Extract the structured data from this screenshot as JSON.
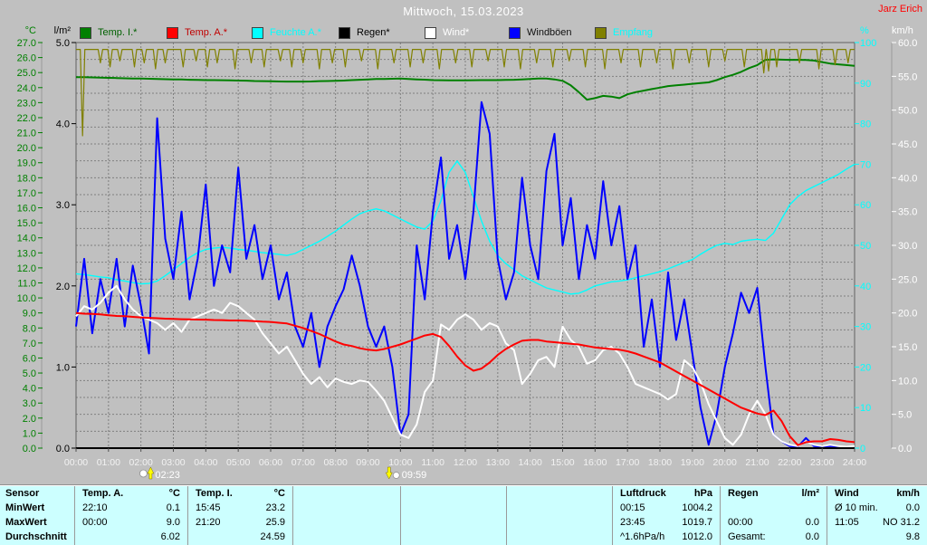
{
  "header": {
    "title": "Mittwoch, 15.03.2023",
    "station": "Jarz Erich"
  },
  "legend": [
    {
      "label": "Temp. I.*",
      "square": "#008000",
      "text": "#006000"
    },
    {
      "label": "Temp. A.*",
      "square": "#ff0000",
      "text": "#c00000"
    },
    {
      "label": "Feuchte A.*",
      "square": "#00ffff",
      "text": "#00ffff"
    },
    {
      "label": "Regen*",
      "square": "#000000",
      "text": "#000000"
    },
    {
      "label": "Wind*",
      "square": "#ffffff",
      "text": "#ffffff"
    },
    {
      "label": "Windböen",
      "square": "#0000ff",
      "text": "#101010"
    },
    {
      "label": "Empfang",
      "square": "#808000",
      "text": "#00ffff"
    }
  ],
  "axes": {
    "left_outer": {
      "unit": "°C",
      "color": "#008000",
      "min": 0,
      "max": 27,
      "step": 1,
      "decimals": 1
    },
    "left_inner": {
      "unit": "l/m²",
      "color": "#000000",
      "min": 0,
      "max": 5,
      "step": 1,
      "decimals": 1
    },
    "right_inner": {
      "unit": "%",
      "color": "#00ffff",
      "min": 0,
      "max": 100,
      "step": 10,
      "decimals": 0
    },
    "right_outer": {
      "unit": "km/h",
      "color": "#ffffff",
      "min": 0,
      "max": 60,
      "step": 5,
      "decimals": 1
    }
  },
  "x_axis": {
    "labels": [
      "00:00",
      "01:00",
      "02:00",
      "03:00",
      "04:00",
      "05:00",
      "06:00",
      "07:00",
      "08:00",
      "09:00",
      "10:00",
      "11:00",
      "12:00",
      "13:00",
      "14:00",
      "15:00",
      "16:00",
      "17:00",
      "18:00",
      "19:00",
      "20:00",
      "21:00",
      "22:00",
      "23:00",
      "24:00"
    ],
    "label_color": "#f2f2f2"
  },
  "markers": [
    {
      "time": "02:23",
      "hour": 2.3833,
      "direction": "up",
      "icon": "moon"
    },
    {
      "time": "09:59",
      "hour": 9.9833,
      "direction": "down",
      "icon": "moon"
    }
  ],
  "chart_data": {
    "type": "line",
    "x_unit": "hours",
    "x_range": [
      0,
      24
    ],
    "grid": {
      "vertical_every_hours": 1,
      "horizontal_every_kmh": 2.5,
      "color": "#808080"
    },
    "series": [
      {
        "name": "Feuchte A.*",
        "axis": "percent",
        "color": "#00ffff",
        "width": 1.4,
        "start": 0,
        "step": 0.25,
        "values": [
          43,
          42.8,
          42.5,
          42.2,
          42,
          41.5,
          41.2,
          40.8,
          40.5,
          40.6,
          41.2,
          42.5,
          44,
          45.5,
          47,
          48.2,
          49,
          49.3,
          49.5,
          49.3,
          49,
          48.8,
          48.5,
          48.2,
          48,
          47.8,
          47.5,
          48,
          49,
          50,
          51,
          52.2,
          53.5,
          55,
          56.5,
          57.8,
          58.5,
          59,
          58.5,
          57.5,
          56.5,
          55.5,
          54.5,
          54,
          56,
          61,
          68,
          70.8,
          68,
          62,
          56,
          51,
          47.5,
          45.5,
          44,
          42.5,
          41.5,
          40.5,
          39.5,
          39,
          38.5,
          38,
          38.2,
          39,
          40,
          40.5,
          41,
          41.2,
          41.5,
          42,
          42.5,
          43,
          43.5,
          44.2,
          45,
          45.8,
          46.5,
          47.8,
          49,
          50,
          50.5,
          50.2,
          51,
          51.3,
          51.5,
          51.2,
          53,
          56.5,
          60,
          62,
          63.5,
          64.5,
          65.5,
          66.5,
          67.5,
          68.8,
          70
        ]
      },
      {
        "name": "Windböen",
        "axis": "kmh",
        "color": "#0000ff",
        "width": 2,
        "start": 0,
        "step": 0.25,
        "values": [
          18,
          28,
          17,
          25,
          20,
          28,
          18,
          27,
          21,
          14,
          48.8,
          31,
          25,
          35,
          22,
          28,
          39,
          24,
          30,
          26,
          41.5,
          28,
          33,
          25,
          30,
          22,
          26,
          18,
          15,
          20,
          12,
          18,
          21,
          23.5,
          28.5,
          24,
          18,
          15,
          18,
          12,
          2,
          5,
          30,
          22,
          35,
          43,
          28,
          33,
          25,
          35,
          51.2,
          46.5,
          28,
          22,
          26,
          40,
          30,
          25,
          41,
          46.5,
          30,
          37,
          25,
          33,
          28,
          39.5,
          30,
          35.8,
          25,
          30,
          15,
          22,
          12,
          26,
          16,
          22,
          14,
          6,
          0.5,
          5,
          12,
          17,
          23,
          20,
          23.7,
          12,
          2,
          1,
          0.3,
          0.2,
          1.5,
          0.3,
          0.2,
          0.3,
          0.2,
          0.2,
          0.2
        ]
      },
      {
        "name": "Wind*",
        "axis": "kmh",
        "color": "#ffffff",
        "width": 2,
        "start": 0,
        "step": 0.25,
        "values": [
          19.5,
          21,
          20.5,
          21.5,
          23,
          24,
          22,
          20.5,
          19.5,
          19,
          18.5,
          17.5,
          18.5,
          17.2,
          19,
          19.5,
          20,
          20.5,
          20,
          21.5,
          21,
          20,
          19,
          17,
          15.5,
          14,
          15,
          13,
          11,
          9.5,
          10.5,
          9,
          10.3,
          9.8,
          9.5,
          10,
          9.8,
          8.5,
          7,
          4.5,
          2,
          1.5,
          3.5,
          8.3,
          10,
          18.3,
          17.5,
          19,
          19.8,
          19,
          17.5,
          18.5,
          18,
          15.5,
          14.5,
          9.5,
          11,
          13,
          13.5,
          12,
          18,
          16,
          15,
          12.5,
          13,
          14.5,
          15,
          14,
          12,
          9.5,
          9,
          8.5,
          8,
          7.2,
          8,
          13,
          12,
          9.8,
          6.5,
          4,
          1.5,
          0.5,
          2,
          5,
          7,
          5,
          2,
          1,
          0.5,
          0.3,
          1,
          0.5,
          0.3,
          0.5,
          0.3,
          0.2,
          0.3
        ]
      },
      {
        "name": "Temp. A.*",
        "axis": "temp_c",
        "color": "#ff0000",
        "width": 2,
        "start": 0,
        "step": 0.25,
        "values": [
          9.0,
          8.95,
          8.93,
          8.9,
          8.85,
          8.8,
          8.78,
          8.74,
          8.7,
          8.67,
          8.65,
          8.62,
          8.6,
          8.58,
          8.57,
          8.56,
          8.55,
          8.53,
          8.52,
          8.5,
          8.5,
          8.48,
          8.45,
          8.42,
          8.4,
          8.35,
          8.3,
          8.15,
          8.0,
          7.8,
          7.6,
          7.35,
          7.1,
          6.9,
          6.8,
          6.65,
          6.55,
          6.5,
          6.6,
          6.75,
          6.9,
          7.1,
          7.3,
          7.5,
          7.6,
          7.4,
          6.8,
          6.1,
          5.5,
          5.15,
          5.3,
          5.7,
          6.2,
          6.6,
          6.9,
          7.15,
          7.2,
          7.2,
          7.1,
          7.05,
          7.0,
          6.95,
          6.9,
          6.8,
          6.7,
          6.65,
          6.6,
          6.55,
          6.45,
          6.3,
          6.1,
          5.9,
          5.7,
          5.4,
          5.1,
          4.8,
          4.5,
          4.2,
          3.9,
          3.6,
          3.3,
          3.0,
          2.7,
          2.5,
          2.3,
          2.2,
          2.5,
          1.8,
          0.8,
          0.2,
          0.4,
          0.45,
          0.45,
          0.6,
          0.55,
          0.45,
          0.4
        ]
      },
      {
        "name": "Temp. I.*",
        "axis": "temp_c",
        "color": "#008000",
        "width": 2,
        "start": 0,
        "step": 0.25,
        "values": [
          24.7,
          24.69,
          24.68,
          24.66,
          24.65,
          24.64,
          24.62,
          24.61,
          24.6,
          24.59,
          24.57,
          24.56,
          24.55,
          24.54,
          24.52,
          24.51,
          24.5,
          24.5,
          24.49,
          24.48,
          24.47,
          24.46,
          24.44,
          24.43,
          24.42,
          24.41,
          24.4,
          24.4,
          24.4,
          24.41,
          24.43,
          24.44,
          24.45,
          24.47,
          24.5,
          24.52,
          24.55,
          24.57,
          24.58,
          24.59,
          24.6,
          24.58,
          24.55,
          24.53,
          24.5,
          24.49,
          24.48,
          24.48,
          24.48,
          24.49,
          24.5,
          24.5,
          24.5,
          24.51,
          24.52,
          24.55,
          24.58,
          24.6,
          24.6,
          24.55,
          24.45,
          24.15,
          23.7,
          23.2,
          23.3,
          23.45,
          23.4,
          23.3,
          23.55,
          23.7,
          23.8,
          23.9,
          24.0,
          24.1,
          24.15,
          24.2,
          24.25,
          24.3,
          24.35,
          24.5,
          24.7,
          24.85,
          25.05,
          25.3,
          25.5,
          25.85,
          25.88,
          25.86,
          25.85,
          25.85,
          25.84,
          25.8,
          25.7,
          25.6,
          25.55,
          25.5,
          25.45
        ]
      },
      {
        "name": "Regen*",
        "axis": "rain",
        "color": "#000000",
        "width": 2,
        "x": [
          0,
          24
        ],
        "values": [
          0,
          0
        ]
      }
    ],
    "empfang": {
      "name": "Empfang",
      "axis": "percent",
      "color": "#808000",
      "width": 1.2,
      "baseline": 98.3,
      "notches": [
        [
          0.2,
          77
        ],
        [
          0.75,
          95
        ],
        [
          1.05,
          94
        ],
        [
          1.35,
          95.5
        ],
        [
          1.8,
          94
        ],
        [
          2.1,
          95
        ],
        [
          2.45,
          93.5
        ],
        [
          2.75,
          95
        ],
        [
          3.3,
          94
        ],
        [
          3.7,
          95.5
        ],
        [
          4.05,
          94
        ],
        [
          4.35,
          95
        ],
        [
          4.9,
          93.5
        ],
        [
          5.4,
          95
        ],
        [
          5.8,
          94
        ],
        [
          6.3,
          95.5
        ],
        [
          6.65,
          94
        ],
        [
          7.0,
          95
        ],
        [
          7.5,
          93.5
        ],
        [
          7.9,
          95
        ],
        [
          8.3,
          94
        ],
        [
          8.8,
          95.5
        ],
        [
          9.3,
          93.5
        ],
        [
          9.8,
          95
        ],
        [
          10.3,
          94
        ],
        [
          10.7,
          95
        ],
        [
          11.2,
          93.5
        ],
        [
          11.7,
          95
        ],
        [
          12.2,
          94
        ],
        [
          12.7,
          95.5
        ],
        [
          13.2,
          94
        ],
        [
          13.7,
          93.5
        ],
        [
          14.2,
          95
        ],
        [
          14.7,
          94
        ],
        [
          15.2,
          95.5
        ],
        [
          15.7,
          94
        ],
        [
          16.3,
          93.5
        ],
        [
          16.8,
          95
        ],
        [
          17.4,
          94
        ],
        [
          17.9,
          95
        ],
        [
          18.4,
          93.5
        ],
        [
          18.9,
          95
        ],
        [
          19.5,
          94
        ],
        [
          20.0,
          95.5
        ],
        [
          20.6,
          94
        ],
        [
          21.2,
          92.5
        ],
        [
          21.35,
          93
        ],
        [
          21.6,
          94
        ],
        [
          22.3,
          95
        ],
        [
          22.9,
          93.5
        ],
        [
          23.4,
          94.5
        ],
        [
          23.8,
          95
        ]
      ]
    }
  },
  "table": {
    "row_labels": [
      "Sensor",
      "MinWert",
      "MaxWert",
      "Durchschnitt"
    ],
    "columns": [
      {
        "name": "Temp. A.",
        "unit": "°C",
        "rows": [
          [
            "22:10",
            "0.1"
          ],
          [
            "00:00",
            "9.0"
          ],
          [
            "",
            "6.02"
          ]
        ]
      },
      {
        "name": "Temp. I.",
        "unit": "°C",
        "rows": [
          [
            "15:45",
            "23.2"
          ],
          [
            "21:20",
            "25.9"
          ],
          [
            "",
            "24.59"
          ]
        ]
      },
      {
        "name": "",
        "unit": "",
        "rows": [
          [
            "",
            ""
          ],
          [
            "",
            ""
          ],
          [
            "",
            ""
          ]
        ]
      },
      {
        "name": "",
        "unit": "",
        "rows": [
          [
            "",
            ""
          ],
          [
            "",
            ""
          ],
          [
            "",
            ""
          ]
        ]
      },
      {
        "name": "",
        "unit": "",
        "rows": [
          [
            "",
            ""
          ],
          [
            "",
            ""
          ],
          [
            "",
            ""
          ]
        ]
      },
      {
        "name": "Luftdruck",
        "unit": "hPa",
        "rows": [
          [
            "00:15",
            "1004.2"
          ],
          [
            "23:45",
            "1019.7"
          ],
          [
            "^1.6hPa/h",
            "1012.0"
          ]
        ]
      },
      {
        "name": "Regen",
        "unit": "l/m²",
        "rows": [
          [
            "",
            ""
          ],
          [
            "00:00",
            "0.0"
          ],
          [
            "Gesamt:",
            "0.0"
          ]
        ]
      },
      {
        "name": "Wind",
        "unit": "km/h",
        "rows": [
          [
            "Ø 10 min.",
            "0.0"
          ],
          [
            "11:05",
            "NO 31.2"
          ],
          [
            "",
            "9.8"
          ]
        ]
      }
    ]
  }
}
